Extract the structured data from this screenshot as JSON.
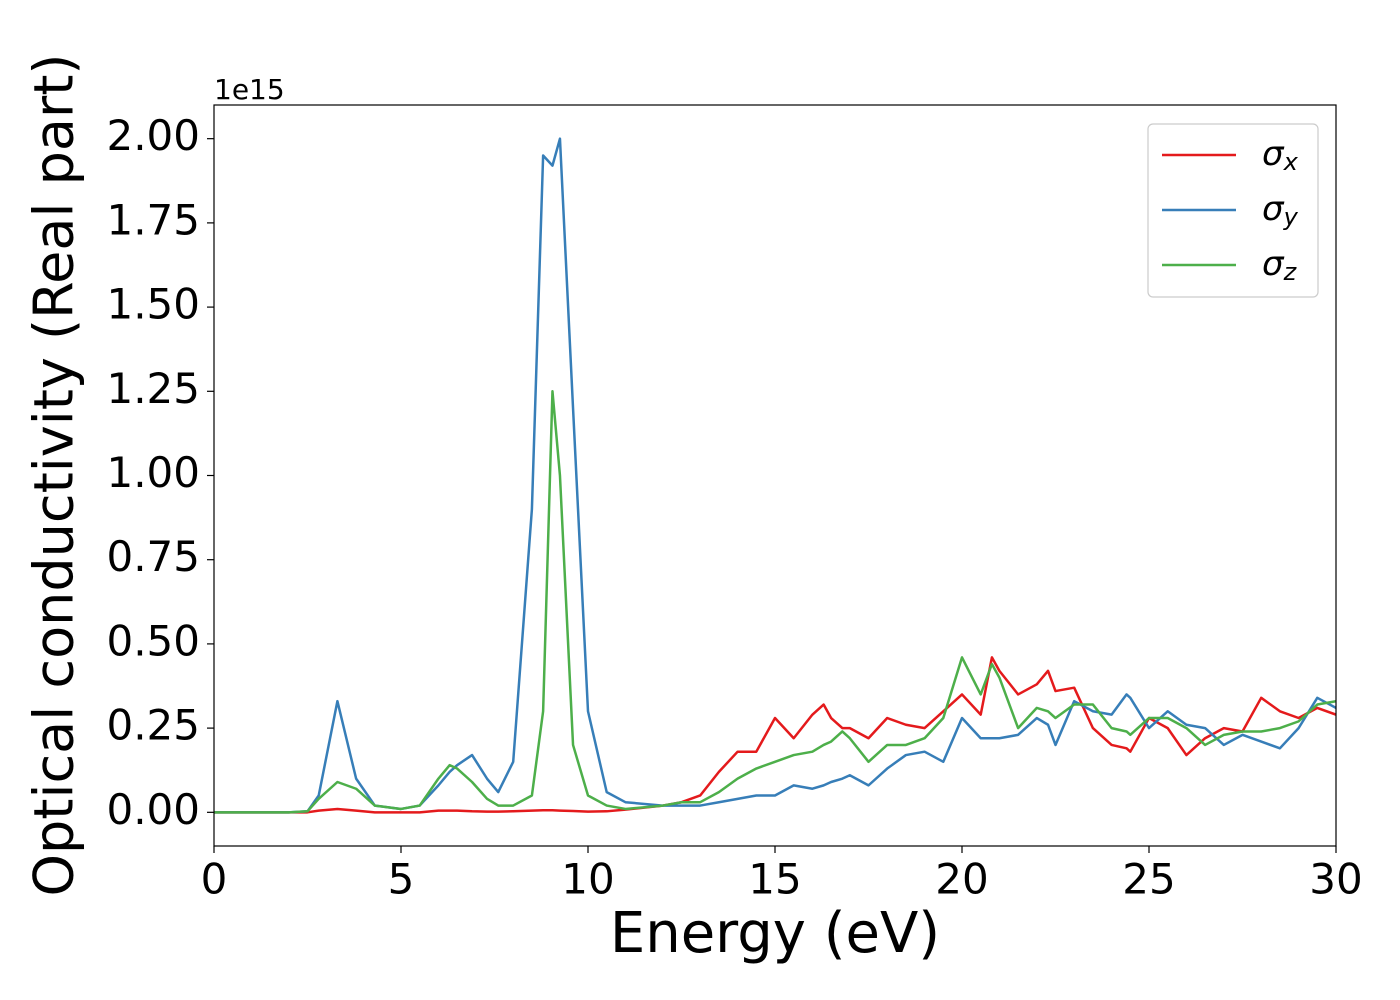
{
  "chart_data": {
    "type": "line",
    "xlabel": "Energy (eV)",
    "ylabel": "Optical conductivity (Real part)",
    "offset_text": "1e15",
    "x": [
      0,
      1,
      2,
      2.5,
      2.8,
      3.3,
      3.8,
      4.3,
      5,
      5.5,
      6,
      6.3,
      6.5,
      6.9,
      7.3,
      7.6,
      8,
      8.5,
      8.8,
      9.05,
      9.25,
      9.6,
      10,
      10.5,
      11,
      12,
      12.5,
      13,
      13.5,
      14,
      14.5,
      15,
      15.5,
      16,
      16.3,
      16.5,
      16.8,
      17,
      17.5,
      18,
      18.5,
      19,
      19.5,
      20,
      20.5,
      20.8,
      21,
      21.5,
      22,
      22.3,
      22.5,
      23,
      23.5,
      24,
      24.4,
      24.5,
      25,
      25.5,
      26,
      26.5,
      27,
      27.5,
      28,
      28.5,
      29,
      29.5,
      30
    ],
    "series": [
      {
        "name": "σx",
        "color": "#e41a1c",
        "values": [
          0,
          0,
          0,
          0,
          0.005,
          0.01,
          0.005,
          0,
          0,
          0,
          0.005,
          0.005,
          0.005,
          0.003,
          0.002,
          0.002,
          0.003,
          0.005,
          0.006,
          0.006,
          0.005,
          0.004,
          0.002,
          0.003,
          0.008,
          0.02,
          0.03,
          0.05,
          0.12,
          0.18,
          0.18,
          0.28,
          0.22,
          0.29,
          0.32,
          0.28,
          0.25,
          0.25,
          0.22,
          0.28,
          0.26,
          0.25,
          0.3,
          0.35,
          0.29,
          0.46,
          0.42,
          0.35,
          0.38,
          0.42,
          0.36,
          0.37,
          0.25,
          0.2,
          0.19,
          0.18,
          0.28,
          0.25,
          0.17,
          0.22,
          0.25,
          0.24,
          0.34,
          0.3,
          0.28,
          0.31,
          0.29
        ]
      },
      {
        "name": "σy",
        "color": "#377eb8",
        "values": [
          0,
          0,
          0,
          0.003,
          0.05,
          0.33,
          0.1,
          0.02,
          0.01,
          0.02,
          0.08,
          0.12,
          0.14,
          0.17,
          0.1,
          0.06,
          0.15,
          0.9,
          1.95,
          1.92,
          2.0,
          1.2,
          0.3,
          0.06,
          0.03,
          0.02,
          0.02,
          0.02,
          0.03,
          0.04,
          0.05,
          0.05,
          0.08,
          0.07,
          0.08,
          0.09,
          0.1,
          0.11,
          0.08,
          0.13,
          0.17,
          0.18,
          0.15,
          0.28,
          0.22,
          0.22,
          0.22,
          0.23,
          0.28,
          0.26,
          0.2,
          0.33,
          0.3,
          0.29,
          0.35,
          0.34,
          0.25,
          0.3,
          0.26,
          0.25,
          0.2,
          0.23,
          0.21,
          0.19,
          0.25,
          0.34,
          0.31
        ]
      },
      {
        "name": "σz",
        "color": "#4daf4a",
        "values": [
          0,
          0,
          0,
          0.003,
          0.04,
          0.09,
          0.07,
          0.02,
          0.01,
          0.02,
          0.1,
          0.14,
          0.13,
          0.09,
          0.04,
          0.02,
          0.02,
          0.05,
          0.3,
          1.25,
          1.0,
          0.2,
          0.05,
          0.02,
          0.01,
          0.02,
          0.03,
          0.03,
          0.06,
          0.1,
          0.13,
          0.15,
          0.17,
          0.18,
          0.2,
          0.21,
          0.24,
          0.22,
          0.15,
          0.2,
          0.2,
          0.22,
          0.28,
          0.46,
          0.35,
          0.44,
          0.4,
          0.25,
          0.31,
          0.3,
          0.28,
          0.32,
          0.32,
          0.25,
          0.24,
          0.23,
          0.28,
          0.28,
          0.25,
          0.2,
          0.23,
          0.24,
          0.24,
          0.25,
          0.27,
          0.32,
          0.33
        ]
      }
    ],
    "xlim": [
      0,
      30
    ],
    "xticks": [
      0,
      5,
      10,
      15,
      20,
      25,
      30
    ],
    "ylim": [
      -0.1,
      2.1
    ],
    "yticks": [
      {
        "value": 0,
        "label": "0.00"
      },
      {
        "value": 0.25,
        "label": "0.25"
      },
      {
        "value": 0.5,
        "label": "0.50"
      },
      {
        "value": 0.75,
        "label": "0.75"
      },
      {
        "value": 1,
        "label": "1.00"
      },
      {
        "value": 1.25,
        "label": "1.25"
      },
      {
        "value": 1.5,
        "label": "1.50"
      },
      {
        "value": 1.75,
        "label": "1.75"
      },
      {
        "value": 2,
        "label": "2.00"
      }
    ],
    "grid": false,
    "legend": "upper right"
  }
}
